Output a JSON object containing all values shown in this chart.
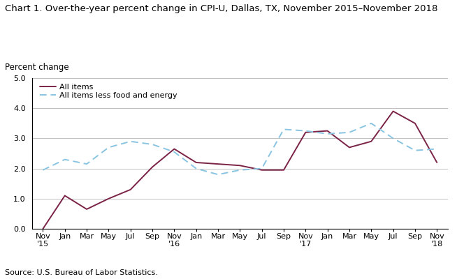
{
  "title": "Chart 1. Over-the-year percent change in CPI-U, Dallas, TX, November 2015–November 2018",
  "ylabel": "Percent change",
  "source": "Source: U.S. Bureau of Labor Statistics.",
  "ylim": [
    0.0,
    5.0
  ],
  "yticks": [
    0.0,
    1.0,
    2.0,
    3.0,
    4.0,
    5.0
  ],
  "x_labels": [
    "Nov\n'15",
    "Jan",
    "Mar",
    "May",
    "Jul",
    "Sep",
    "Nov\n'16",
    "Jan",
    "Mar",
    "May",
    "Jul",
    "Sep",
    "Nov\n'17",
    "Jan",
    "Mar",
    "May",
    "Jul",
    "Sep",
    "Nov\n'18"
  ],
  "all_items": [
    0.0,
    1.1,
    0.65,
    1.0,
    1.3,
    2.05,
    2.65,
    2.2,
    2.15,
    2.1,
    1.95,
    1.95,
    3.2,
    3.25,
    2.7,
    2.9,
    3.9,
    3.5,
    2.2
  ],
  "all_items_less": [
    1.95,
    2.3,
    2.15,
    2.7,
    2.9,
    2.8,
    2.55,
    2.0,
    1.8,
    1.95,
    2.0,
    3.3,
    3.25,
    3.15,
    3.2,
    3.5,
    3.0,
    2.6,
    2.65
  ],
  "all_items_color": "#7B2346",
  "all_items_less_color": "#89C4E1",
  "background_color": "#ffffff",
  "grid_color": "#c0c0c0",
  "title_fontsize": 9.5,
  "label_fontsize": 8.5,
  "tick_fontsize": 8,
  "source_fontsize": 8
}
